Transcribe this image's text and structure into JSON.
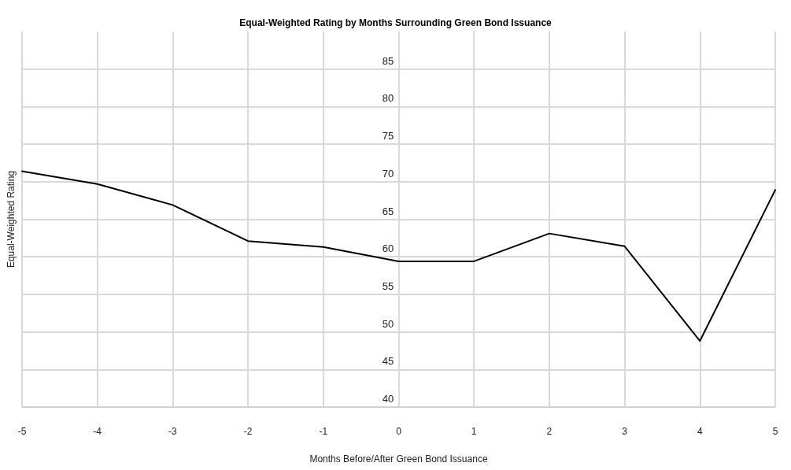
{
  "chart_data": {
    "type": "line",
    "title": "Equal-Weighted Rating by Months Surrounding Green Bond Issuance",
    "xlabel": "Months Before/After Green Bond Issuance",
    "ylabel": "Equal-Weighted Rating",
    "x": [
      -5,
      -4,
      -3,
      -2,
      -1,
      0,
      1,
      2,
      3,
      4,
      5
    ],
    "series": [
      {
        "color": "#000000",
        "values": [
          71.4,
          69.7,
          66.9,
          62.1,
          61.3,
          59.4,
          59.4,
          63.1,
          61.4,
          48.8,
          68.9
        ]
      }
    ],
    "xlim": [
      -5,
      5
    ],
    "xticks": [
      -5,
      -4,
      -3,
      -2,
      -1,
      0,
      1,
      2,
      3,
      4,
      5
    ],
    "ylim": [
      40,
      90
    ],
    "yticks": [
      40,
      45,
      50,
      55,
      60,
      65,
      70,
      75,
      80,
      85
    ],
    "grid": true,
    "marker": "none",
    "line_style": "solid"
  }
}
